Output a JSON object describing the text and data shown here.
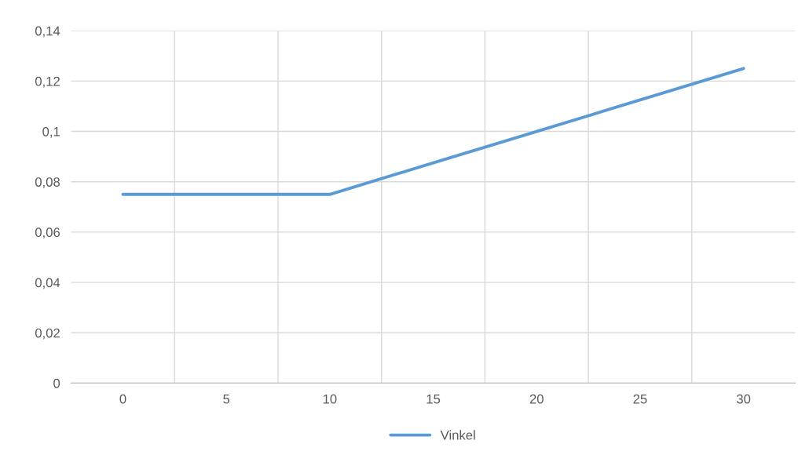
{
  "chart_data": {
    "type": "line",
    "categories": [
      "0",
      "5",
      "10",
      "15",
      "20",
      "25",
      "30"
    ],
    "series": [
      {
        "name": "Vinkel",
        "color": "#5b9bd5",
        "values": [
          0.075,
          0.075,
          0.075,
          0.0875,
          0.1,
          0.1125,
          0.125
        ]
      }
    ],
    "ylim": [
      0,
      0.14
    ],
    "yticks": [
      0,
      {
        "value": 0.02,
        "label": "0,02"
      },
      {
        "value": 0.04,
        "label": "0,04"
      },
      {
        "value": 0.06,
        "label": "0,06"
      },
      {
        "value": 0.08,
        "label": "0,08"
      },
      {
        "value": 0.1,
        "label": "0,1"
      },
      {
        "value": 0.12,
        "label": "0,12"
      },
      {
        "value": 0.14,
        "label": "0,14"
      }
    ],
    "grid": true,
    "legend": "bottom",
    "marker": "none",
    "line_style": "solid"
  }
}
